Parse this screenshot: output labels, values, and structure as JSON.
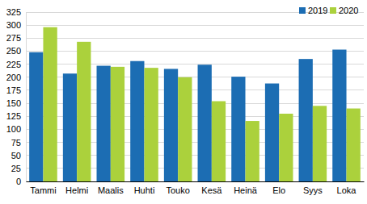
{
  "chart_data": {
    "type": "bar",
    "categories": [
      "Tammi",
      "Helmi",
      "Maalis",
      "Huhti",
      "Touko",
      "Kesä",
      "Heinä",
      "Elo",
      "Syys",
      "Loka"
    ],
    "series": [
      {
        "name": "2019",
        "color": "#1c6db3",
        "values": [
          248,
          207,
          222,
          231,
          216,
          224,
          201,
          188,
          235,
          253
        ]
      },
      {
        "name": "2020",
        "color": "#abd13c",
        "values": [
          296,
          268,
          220,
          218,
          200,
          154,
          116,
          130,
          145,
          140
        ]
      }
    ],
    "ylim": [
      0,
      325
    ],
    "yticks": [
      0,
      25,
      50,
      75,
      100,
      125,
      150,
      175,
      200,
      225,
      250,
      275,
      300,
      325
    ],
    "grid": true,
    "legend": "top-right"
  }
}
